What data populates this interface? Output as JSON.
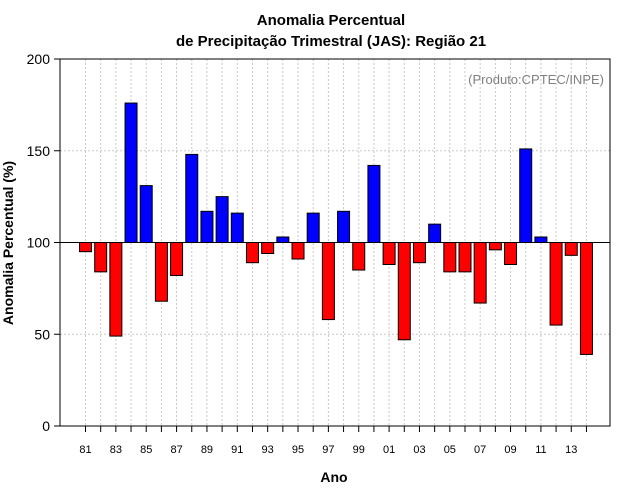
{
  "chart_data": {
    "type": "bar",
    "title": [
      "Anomalia Percentual",
      "de Precipitação Trimestral (JAS): Região 21"
    ],
    "xlabel": "Ano",
    "ylabel": "Anomalia Percentual (%)",
    "annotation": "(Produto:CPTEC/INPE)",
    "baseline": 100,
    "ylim": [
      0,
      200
    ],
    "yticks": [
      0,
      50,
      100,
      150,
      200
    ],
    "grid": true,
    "categories": [
      "81",
      "82",
      "83",
      "84",
      "85",
      "86",
      "87",
      "88",
      "89",
      "90",
      "91",
      "92",
      "93",
      "94",
      "95",
      "96",
      "97",
      "98",
      "99",
      "00",
      "01",
      "02",
      "03",
      "04",
      "05",
      "06",
      "07",
      "08",
      "09",
      "10",
      "11",
      "12",
      "13",
      "14"
    ],
    "xtick_labels": [
      "81",
      "83",
      "85",
      "87",
      "89",
      "91",
      "93",
      "95",
      "97",
      "99",
      "01",
      "03",
      "05",
      "07",
      "09",
      "11",
      "13"
    ],
    "values": [
      95,
      84,
      49,
      176,
      131,
      68,
      82,
      148,
      117,
      125,
      116,
      89,
      94,
      103,
      91,
      116,
      58,
      117,
      85,
      142,
      88,
      47,
      89,
      110,
      84,
      84,
      67,
      96,
      88,
      151,
      103,
      55,
      93,
      39
    ],
    "colors": {
      "above": "#0000ff",
      "below": "#ff0000",
      "outline": "#000000",
      "grid": "#c8c8c8"
    }
  }
}
